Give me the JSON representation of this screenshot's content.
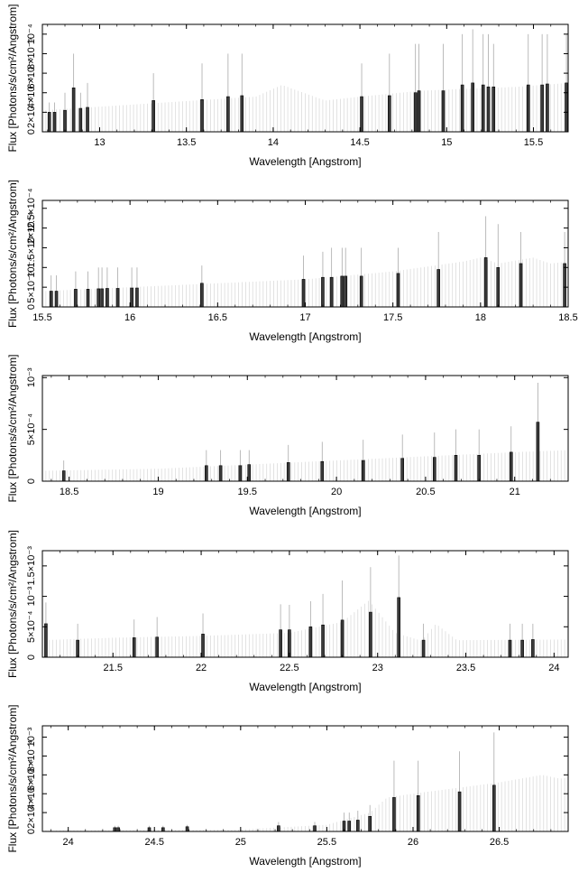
{
  "chart_data": [
    {
      "type": "bar",
      "xlabel": "Wavelength [Angstrom]",
      "ylabel": "Flux [Photons/s/cm²/Angstrom]",
      "xlim": [
        12.67,
        15.7
      ],
      "ylim": [
        0,
        0.00011
      ],
      "x_ticks": [
        13,
        13.5,
        14,
        14.5,
        15,
        15.5
      ],
      "x_tick_labels": [
        "13",
        "13.5",
        "14",
        "14.5",
        "15",
        "15.5"
      ],
      "y_ticks": [
        0,
        2e-05,
        4e-05,
        6e-05,
        8e-05,
        0.0001
      ],
      "y_tick_labels": [
        "0",
        "2×10⁻⁵",
        "4×10⁻⁵",
        "6×10⁻⁵",
        "8×10⁻⁵",
        "10⁻⁴"
      ],
      "continuum": {
        "x": [
          12.67,
          13.2,
          13.9,
          14.05,
          14.3,
          14.5,
          14.85,
          15.1,
          15.4,
          15.7
        ],
        "y": [
          2.2e-05,
          2.8e-05,
          3.6e-05,
          4.8e-05,
          3.2e-05,
          3.6e-05,
          4.2e-05,
          4.4e-05,
          4.6e-05,
          5e-05
        ]
      },
      "lines": [
        {
          "x": 12.71,
          "y": 2e-05,
          "err": 3e-05
        },
        {
          "x": 12.74,
          "y": 2e-05,
          "err": 3e-05
        },
        {
          "x": 12.8,
          "y": 2.2e-05,
          "err": 4e-05
        },
        {
          "x": 12.85,
          "y": 4.5e-05,
          "err": 8e-05
        },
        {
          "x": 12.89,
          "y": 2.4e-05,
          "err": 4e-05
        },
        {
          "x": 12.93,
          "y": 2.5e-05,
          "err": 5e-05
        },
        {
          "x": 13.31,
          "y": 3.2e-05,
          "err": 6e-05
        },
        {
          "x": 13.59,
          "y": 3.3e-05,
          "err": 7e-05
        },
        {
          "x": 13.74,
          "y": 3.6e-05,
          "err": 8e-05
        },
        {
          "x": 13.82,
          "y": 3.7e-05,
          "err": 8e-05
        },
        {
          "x": 14.51,
          "y": 3.6e-05,
          "err": 7e-05
        },
        {
          "x": 14.67,
          "y": 3.7e-05,
          "err": 8e-05
        },
        {
          "x": 14.82,
          "y": 4e-05,
          "err": 9e-05
        },
        {
          "x": 14.84,
          "y": 4.2e-05,
          "err": 9e-05
        },
        {
          "x": 14.98,
          "y": 4.2e-05,
          "err": 9e-05
        },
        {
          "x": 15.09,
          "y": 4.8e-05,
          "err": 0.0001
        },
        {
          "x": 15.15,
          "y": 5e-05,
          "err": 0.000105
        },
        {
          "x": 15.21,
          "y": 4.8e-05,
          "err": 0.0001
        },
        {
          "x": 15.24,
          "y": 4.6e-05,
          "err": 0.0001
        },
        {
          "x": 15.27,
          "y": 4.6e-05,
          "err": 9e-05
        },
        {
          "x": 15.47,
          "y": 4.8e-05,
          "err": 0.0001
        },
        {
          "x": 15.55,
          "y": 4.8e-05,
          "err": 0.0001
        },
        {
          "x": 15.58,
          "y": 4.9e-05,
          "err": 0.0001
        },
        {
          "x": 15.69,
          "y": 5e-05,
          "err": 0.0001
        }
      ]
    },
    {
      "type": "bar",
      "xlabel": "Wavelength [Angstrom]",
      "ylabel": "Flux [Photons/s/cm²/Angstrom]",
      "xlim": [
        15.5,
        18.5
      ],
      "ylim": [
        0,
        0.00027
      ],
      "x_ticks": [
        15.5,
        16,
        16.5,
        17,
        17.5,
        18,
        18.5
      ],
      "x_tick_labels": [
        "15.5",
        "16",
        "16.5",
        "17",
        "17.5",
        "18",
        "18.5"
      ],
      "y_ticks": [
        0,
        5e-05,
        0.0001,
        0.00015,
        0.0002,
        0.00025
      ],
      "y_tick_labels": [
        "0",
        "5×10⁻⁵",
        "10⁻⁴",
        "1.5×10⁻⁴",
        "2×10⁻⁴",
        "2.5×10⁻⁴"
      ],
      "continuum": {
        "x": [
          15.5,
          16.5,
          17,
          17.5,
          17.9,
          18.0,
          18.1,
          18.3,
          18.4,
          18.5
        ],
        "y": [
          4e-05,
          6e-05,
          7e-05,
          9e-05,
          0.000115,
          0.000125,
          0.00011,
          0.000125,
          0.00011,
          0.000115
        ]
      },
      "lines": [
        {
          "x": 15.55,
          "y": 4e-05,
          "err": 8e-05
        },
        {
          "x": 15.58,
          "y": 4e-05,
          "err": 8e-05
        },
        {
          "x": 15.69,
          "y": 4.5e-05,
          "err": 9e-05
        },
        {
          "x": 15.76,
          "y": 4.5e-05,
          "err": 9e-05
        },
        {
          "x": 15.82,
          "y": 4.6e-05,
          "err": 0.0001
        },
        {
          "x": 15.84,
          "y": 4.6e-05,
          "err": 0.0001
        },
        {
          "x": 15.87,
          "y": 4.7e-05,
          "err": 0.0001
        },
        {
          "x": 15.93,
          "y": 4.7e-05,
          "err": 0.0001
        },
        {
          "x": 16.01,
          "y": 4.8e-05,
          "err": 0.0001
        },
        {
          "x": 16.04,
          "y": 4.8e-05,
          "err": 0.0001
        },
        {
          "x": 16.41,
          "y": 6e-05,
          "err": 0.000105
        },
        {
          "x": 16.99,
          "y": 7e-05,
          "err": 0.00013
        },
        {
          "x": 17.1,
          "y": 7.5e-05,
          "err": 0.00014
        },
        {
          "x": 17.15,
          "y": 7.5e-05,
          "err": 0.00015
        },
        {
          "x": 17.21,
          "y": 7.8e-05,
          "err": 0.00015
        },
        {
          "x": 17.23,
          "y": 7.8e-05,
          "err": 0.00015
        },
        {
          "x": 17.32,
          "y": 7.8e-05,
          "err": 0.00015
        },
        {
          "x": 17.53,
          "y": 8.5e-05,
          "err": 0.00015
        },
        {
          "x": 17.76,
          "y": 9.5e-05,
          "err": 0.00019
        },
        {
          "x": 18.03,
          "y": 0.000125,
          "err": 0.00023
        },
        {
          "x": 18.1,
          "y": 0.0001,
          "err": 0.00021
        },
        {
          "x": 18.23,
          "y": 0.00011,
          "err": 0.00019
        },
        {
          "x": 18.48,
          "y": 0.00011,
          "err": 0.00019
        }
      ]
    },
    {
      "type": "bar",
      "xlabel": "Wavelength [Angstrom]",
      "ylabel": "Flux [Photons/s/cm²/Angstrom]",
      "xlim": [
        18.35,
        21.3
      ],
      "ylim": [
        0,
        0.00102
      ],
      "x_ticks": [
        18.5,
        19,
        19.5,
        20,
        20.5,
        21
      ],
      "x_tick_labels": [
        "18.5",
        "19",
        "19.5",
        "20",
        "20.5",
        "21"
      ],
      "y_ticks": [
        0,
        0.0005,
        0.001
      ],
      "y_tick_labels": [
        "0",
        "5×10⁻⁴",
        "10⁻³"
      ],
      "continuum": {
        "x": [
          18.35,
          19,
          19.5,
          20,
          20.5,
          21,
          21.3
        ],
        "y": [
          0.0001,
          0.00012,
          0.00016,
          0.0002,
          0.00024,
          0.00028,
          0.0003
        ]
      },
      "lines": [
        {
          "x": 18.47,
          "y": 0.0001,
          "err": 0.0002
        },
        {
          "x": 19.27,
          "y": 0.00015,
          "err": 0.0003
        },
        {
          "x": 19.35,
          "y": 0.00015,
          "err": 0.0003
        },
        {
          "x": 19.46,
          "y": 0.00015,
          "err": 0.0003
        },
        {
          "x": 19.51,
          "y": 0.00016,
          "err": 0.0003
        },
        {
          "x": 19.73,
          "y": 0.00018,
          "err": 0.00035
        },
        {
          "x": 19.92,
          "y": 0.00019,
          "err": 0.00038
        },
        {
          "x": 20.15,
          "y": 0.0002,
          "err": 0.0004
        },
        {
          "x": 20.37,
          "y": 0.00022,
          "err": 0.00045
        },
        {
          "x": 20.55,
          "y": 0.00023,
          "err": 0.00047
        },
        {
          "x": 20.67,
          "y": 0.00025,
          "err": 0.0005
        },
        {
          "x": 20.8,
          "y": 0.00025,
          "err": 0.0005
        },
        {
          "x": 20.98,
          "y": 0.00028,
          "err": 0.00053
        },
        {
          "x": 21.13,
          "y": 0.00057,
          "err": 0.00095
        }
      ]
    },
    {
      "type": "bar",
      "xlabel": "Wavelength [Angstrom]",
      "ylabel": "Flux [Photons/s/cm²/Angstrom]",
      "xlim": [
        21.1,
        24.08
      ],
      "ylim": [
        0,
        0.00175
      ],
      "x_ticks": [
        21.5,
        22,
        22.5,
        23,
        23.5,
        24
      ],
      "x_tick_labels": [
        "21.5",
        "22",
        "22.5",
        "23",
        "23.5",
        "24"
      ],
      "y_ticks": [
        0,
        0.0005,
        0.001,
        0.0015
      ],
      "y_tick_labels": [
        "0",
        "5×10⁻⁴",
        "10⁻³",
        "1.5×10⁻³"
      ],
      "continuum": {
        "x": [
          21.1,
          21.5,
          22,
          22.5,
          22.8,
          22.95,
          23.1,
          23.25,
          23.33,
          23.45,
          24.08
        ],
        "y": [
          0.00028,
          0.00032,
          0.00035,
          0.0004,
          0.00058,
          0.00093,
          0.0004,
          0.00027,
          0.00055,
          0.00028,
          0.00029
        ]
      },
      "lines": [
        {
          "x": 21.12,
          "y": 0.00055,
          "err": 0.0009
        },
        {
          "x": 21.3,
          "y": 0.00028,
          "err": 0.00055
        },
        {
          "x": 21.62,
          "y": 0.00032,
          "err": 0.00062
        },
        {
          "x": 21.75,
          "y": 0.00033,
          "err": 0.00066
        },
        {
          "x": 22.01,
          "y": 0.00038,
          "err": 0.00072
        },
        {
          "x": 22.45,
          "y": 0.00045,
          "err": 0.00087
        },
        {
          "x": 22.5,
          "y": 0.00045,
          "err": 0.00086
        },
        {
          "x": 22.62,
          "y": 0.0005,
          "err": 0.00092
        },
        {
          "x": 22.69,
          "y": 0.00053,
          "err": 0.00104
        },
        {
          "x": 22.8,
          "y": 0.00061,
          "err": 0.00126
        },
        {
          "x": 22.96,
          "y": 0.00074,
          "err": 0.00148
        },
        {
          "x": 23.12,
          "y": 0.00098,
          "err": 0.00167
        },
        {
          "x": 23.26,
          "y": 0.00028,
          "err": 0.00055
        },
        {
          "x": 23.75,
          "y": 0.00028,
          "err": 0.00055
        },
        {
          "x": 23.82,
          "y": 0.00028,
          "err": 0.00055
        },
        {
          "x": 23.88,
          "y": 0.00029,
          "err": 0.00055
        }
      ]
    },
    {
      "type": "bar",
      "xlabel": "Wavelength [Angstrom]",
      "ylabel": "Flux [Photons/s/cm²/Angstrom]",
      "xlim": [
        23.85,
        26.9
      ],
      "ylim": [
        0,
        0.00112
      ],
      "x_ticks": [
        24,
        24.5,
        25,
        25.5,
        26,
        26.5
      ],
      "x_tick_labels": [
        "24",
        "24.5",
        "25",
        "25.5",
        "26",
        "26.5"
      ],
      "y_ticks": [
        0,
        0.0002,
        0.0004,
        0.0006,
        0.0008,
        0.001
      ],
      "y_tick_labels": [
        "0",
        "2×10⁻⁴",
        "4×10⁻⁴",
        "6×10⁻⁴",
        "8×10⁻⁴",
        "10⁻³"
      ],
      "continuum": {
        "x": [
          23.85,
          25,
          25.5,
          25.75,
          25.85,
          26,
          26.5,
          26.75,
          26.85,
          26.9
        ],
        "y": [
          1e-05,
          2e-05,
          7e-05,
          0.0002,
          0.00036,
          0.0004,
          0.00052,
          0.0006,
          0.00056,
          0.00057
        ]
      },
      "lines": [
        {
          "x": 24.27,
          "y": 4e-05,
          "err": 6e-05
        },
        {
          "x": 24.29,
          "y": 4e-05,
          "err": 6e-05
        },
        {
          "x": 24.47,
          "y": 4e-05,
          "err": 6e-05
        },
        {
          "x": 24.55,
          "y": 4e-05,
          "err": 6e-05
        },
        {
          "x": 24.69,
          "y": 5e-05,
          "err": 7e-05
        },
        {
          "x": 25.22,
          "y": 6e-05,
          "err": 0.0001
        },
        {
          "x": 25.43,
          "y": 6e-05,
          "err": 0.0001
        },
        {
          "x": 25.6,
          "y": 0.00011,
          "err": 0.0002
        },
        {
          "x": 25.63,
          "y": 0.00011,
          "err": 0.0002
        },
        {
          "x": 25.68,
          "y": 0.00012,
          "err": 0.00022
        },
        {
          "x": 25.75,
          "y": 0.00016,
          "err": 0.00028
        },
        {
          "x": 25.89,
          "y": 0.00036,
          "err": 0.00075
        },
        {
          "x": 26.03,
          "y": 0.00038,
          "err": 0.00075
        },
        {
          "x": 26.27,
          "y": 0.00042,
          "err": 0.00085
        },
        {
          "x": 26.47,
          "y": 0.00049,
          "err": 0.00105
        }
      ]
    }
  ]
}
